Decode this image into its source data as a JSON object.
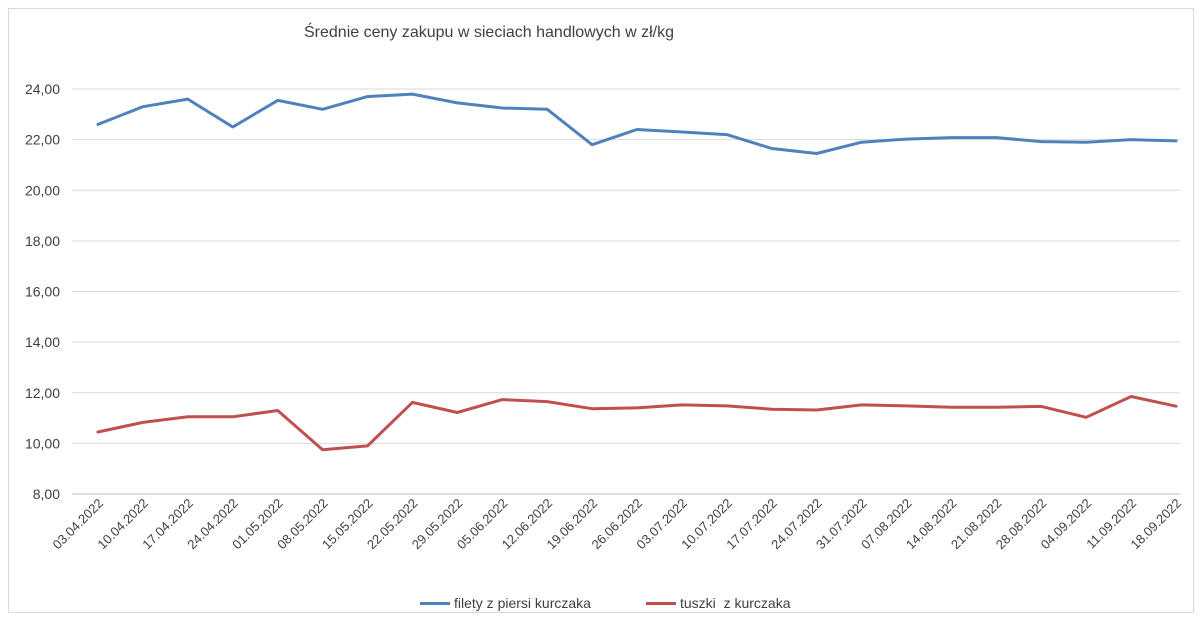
{
  "chart_data": {
    "type": "line",
    "title": "Średnie ceny zakupu w sieciach handlowych w zł/kg",
    "xlabel": "",
    "ylabel": "",
    "ylim": [
      8,
      25
    ],
    "y_ticks": [
      "8,00",
      "10,00",
      "12,00",
      "14,00",
      "16,00",
      "18,00",
      "20,00",
      "22,00",
      "24,00"
    ],
    "categories": [
      "03.04.2022",
      "10.04.2022",
      "17.04.2022",
      "24.04.2022",
      "01.05.2022",
      "08.05.2022",
      "15.05.2022",
      "22.05.2022",
      "29.05.2022",
      "05.06.2022",
      "12.06.2022",
      "19.06.2022",
      "26.06.2022",
      "03.07.2022",
      "10.07.2022",
      "17.07.2022",
      "24.07.2022",
      "31.07.2022",
      "07.08.2022",
      "14.08.2022",
      "21.08.2022",
      "28.08.2022",
      "04.09.2022",
      "11.09.2022",
      "18.09.2022"
    ],
    "grid": "horizontal",
    "legend_position": "bottom",
    "series": [
      {
        "name": "filety z piersi kurczaka",
        "color": "#4f81bd",
        "values": [
          22.6,
          23.3,
          23.6,
          22.5,
          23.55,
          23.2,
          23.7,
          23.8,
          23.45,
          23.25,
          23.2,
          21.8,
          22.4,
          22.3,
          22.2,
          21.65,
          21.45,
          21.9,
          22.02,
          22.08,
          22.08,
          21.92,
          21.9,
          22.0,
          21.95
        ]
      },
      {
        "name": "tuszki  z kurczaka",
        "color": "#c0504d",
        "values": [
          10.45,
          10.83,
          11.05,
          11.05,
          11.3,
          9.75,
          9.9,
          11.62,
          11.22,
          11.73,
          11.65,
          11.37,
          11.4,
          11.52,
          11.48,
          11.35,
          11.32,
          11.52,
          11.48,
          11.43,
          11.43,
          11.46,
          11.03,
          11.85,
          11.47
        ]
      }
    ]
  }
}
